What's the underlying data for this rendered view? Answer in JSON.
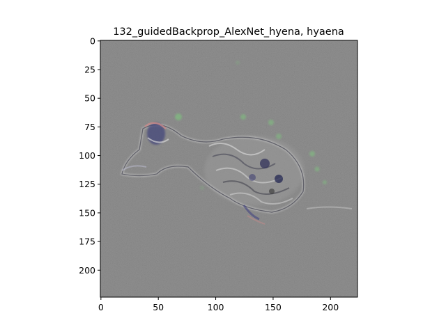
{
  "figure": {
    "title": "132_guidedBackprop_AlexNet_hyena, hyaena",
    "background_color": "#808080",
    "image_extent": {
      "x": [
        0,
        224
      ],
      "y": [
        0,
        224
      ]
    },
    "y_axis_inverted": true,
    "x_ticks": [
      {
        "value": 0,
        "label": "0"
      },
      {
        "value": 50,
        "label": "50"
      },
      {
        "value": 100,
        "label": "100"
      },
      {
        "value": 150,
        "label": "150"
      },
      {
        "value": 200,
        "label": "200"
      }
    ],
    "y_ticks": [
      {
        "value": 0,
        "label": "0"
      },
      {
        "value": 25,
        "label": "25"
      },
      {
        "value": 50,
        "label": "50"
      },
      {
        "value": 75,
        "label": "75"
      },
      {
        "value": 100,
        "label": "100"
      },
      {
        "value": 125,
        "label": "125"
      },
      {
        "value": 150,
        "label": "150"
      },
      {
        "value": 175,
        "label": "175"
      },
      {
        "value": 200,
        "label": "200"
      }
    ]
  }
}
